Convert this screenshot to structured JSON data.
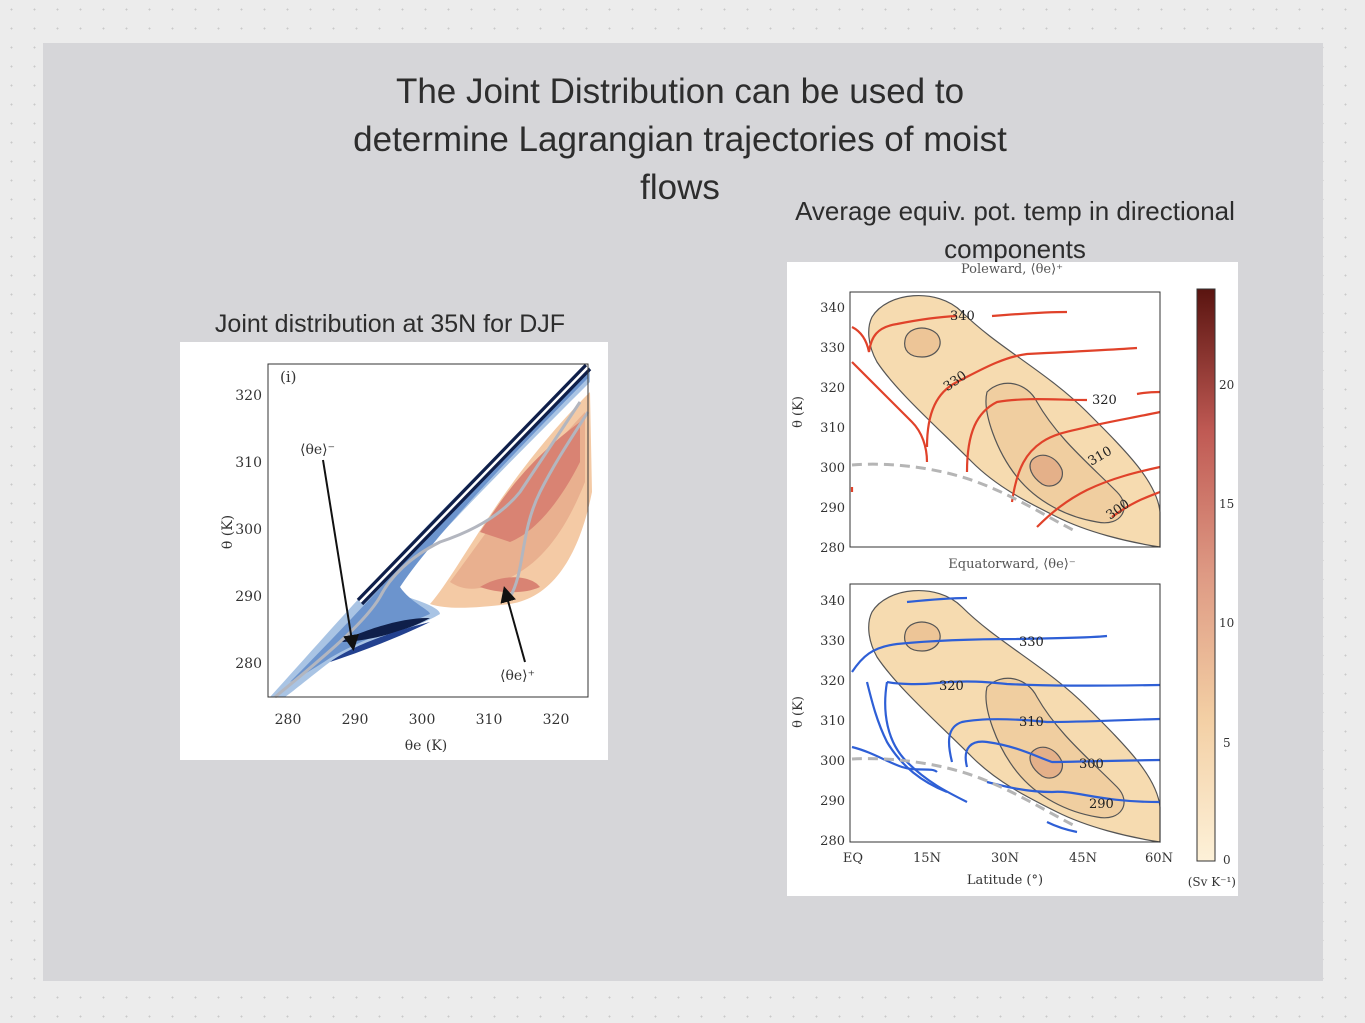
{
  "slide": {
    "title": "The Joint Distribution can be used to determine Lagrangian trajectories of moist flows",
    "caption_left": "Joint distribution at 35N for DJF",
    "caption_right": "Average equiv. pot. temp in directional components"
  },
  "left_figure": {
    "panel_label": "(i)",
    "ylabel": "θ (K)",
    "xlabel": "θe (K)",
    "x_ticks": [
      "280",
      "290",
      "300",
      "310",
      "320"
    ],
    "y_ticks": [
      "320",
      "310",
      "300",
      "290",
      "280"
    ],
    "annotation_minus": "⟨θe⟩⁻",
    "annotation_plus": "⟨θe⟩⁺",
    "colors": {
      "poleward": "#c8504a",
      "equatorward": "#1e3f8f"
    }
  },
  "right_figure": {
    "top_panel_title": "Poleward, ⟨θe⟩⁺",
    "bottom_panel_title": "Equatorward, ⟨θe⟩⁻",
    "ylabel": "θ (K)",
    "xlabel": "Latitude (°)",
    "x_ticks": [
      "EQ",
      "15N",
      "30N",
      "45N",
      "60N"
    ],
    "y_ticks": [
      "340",
      "330",
      "320",
      "310",
      "300",
      "290",
      "280"
    ],
    "top_contour_labels": [
      "340",
      "330",
      "320",
      "310",
      "300"
    ],
    "bottom_contour_labels": [
      "330",
      "320",
      "310",
      "300",
      "290"
    ],
    "colorbar_ticks": [
      "20",
      "15",
      "10",
      "5",
      "0"
    ],
    "colorbar_unit": "(Sv K⁻¹)",
    "colors": {
      "poleward": "#e0422a",
      "equatorward": "#2e5fd6",
      "fill": "#f6dbb0"
    }
  }
}
